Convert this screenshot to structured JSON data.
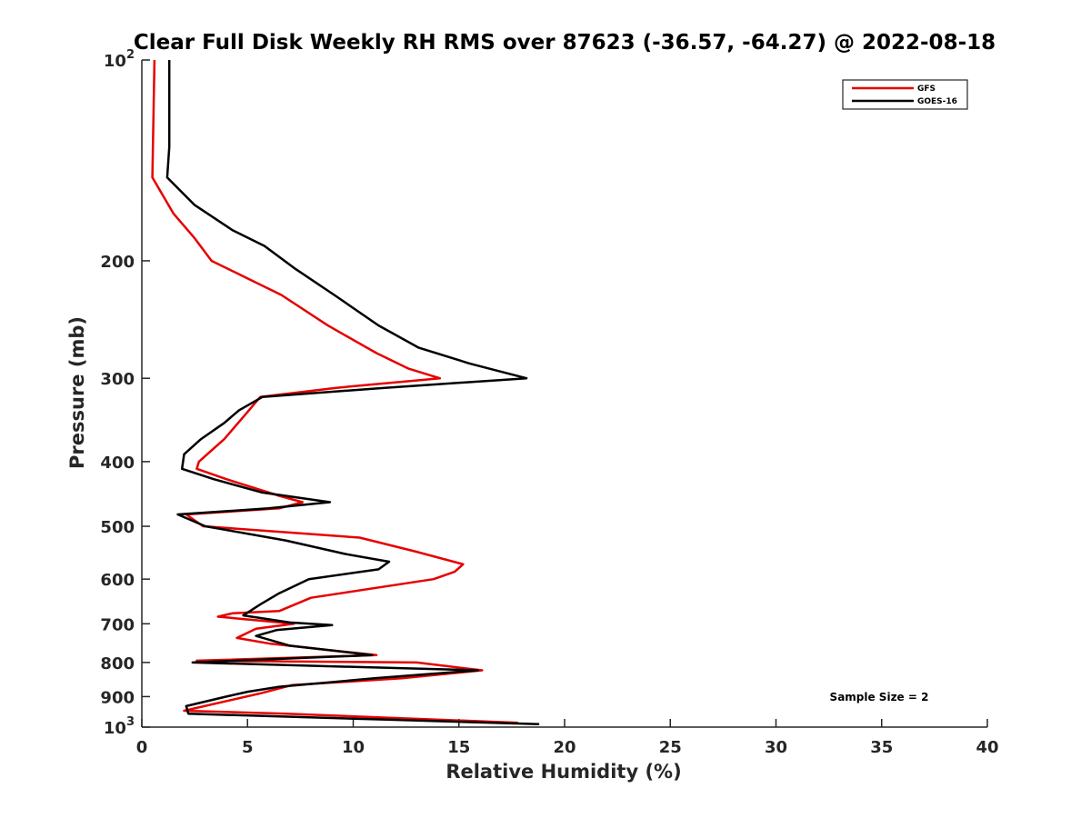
{
  "chart_data": {
    "type": "line",
    "title": "Clear Full Disk Weekly RH RMS over 87623 (-36.57, -64.27) @ 2022-08-18",
    "xlabel": "Relative Humidity (%)",
    "ylabel": "Pressure (mb)",
    "xlim": [
      0,
      40
    ],
    "ylim": [
      100,
      1000
    ],
    "y_scale": "log",
    "y_reversed": true,
    "grid": false,
    "legend_position": "top-right",
    "x_ticks": [
      {
        "value": 0,
        "label": "0"
      },
      {
        "value": 5,
        "label": "5"
      },
      {
        "value": 10,
        "label": "10"
      },
      {
        "value": 15,
        "label": "15"
      },
      {
        "value": 20,
        "label": "20"
      },
      {
        "value": 25,
        "label": "25"
      },
      {
        "value": 30,
        "label": "30"
      },
      {
        "value": 35,
        "label": "35"
      },
      {
        "value": 40,
        "label": "40"
      }
    ],
    "y_ticks": [
      {
        "value": 100,
        "label": "10",
        "sup": "2"
      },
      {
        "value": 200,
        "label": "200",
        "sup": ""
      },
      {
        "value": 300,
        "label": "300",
        "sup": ""
      },
      {
        "value": 400,
        "label": "400",
        "sup": ""
      },
      {
        "value": 500,
        "label": "500",
        "sup": ""
      },
      {
        "value": 600,
        "label": "600",
        "sup": ""
      },
      {
        "value": 700,
        "label": "700",
        "sup": ""
      },
      {
        "value": 800,
        "label": "800",
        "sup": ""
      },
      {
        "value": 900,
        "label": "900",
        "sup": ""
      },
      {
        "value": 1000,
        "label": "10",
        "sup": "3"
      }
    ],
    "series": [
      {
        "name": "GFS",
        "color": "#e60000",
        "points": [
          [
            0.6,
            100
          ],
          [
            0.5,
            150
          ],
          [
            1.5,
            170
          ],
          [
            2.5,
            185
          ],
          [
            3.3,
            200
          ],
          [
            6.6,
            225
          ],
          [
            8.8,
            250
          ],
          [
            11.1,
            275
          ],
          [
            12.6,
            290
          ],
          [
            14.1,
            300
          ],
          [
            9.2,
            310
          ],
          [
            5.6,
            320
          ],
          [
            4.9,
            340
          ],
          [
            3.9,
            370
          ],
          [
            2.7,
            400
          ],
          [
            2.6,
            410
          ],
          [
            4.0,
            425
          ],
          [
            6.5,
            450
          ],
          [
            7.6,
            460
          ],
          [
            6.5,
            470
          ],
          [
            2.1,
            480
          ],
          [
            2.9,
            500
          ],
          [
            10.3,
            520
          ],
          [
            12.9,
            545
          ],
          [
            15.2,
            570
          ],
          [
            14.8,
            585
          ],
          [
            13.8,
            600
          ],
          [
            8.0,
            640
          ],
          [
            6.5,
            670
          ],
          [
            4.3,
            675
          ],
          [
            3.6,
            683
          ],
          [
            7.2,
            700
          ],
          [
            5.4,
            712
          ],
          [
            4.5,
            735
          ],
          [
            6.1,
            750
          ],
          [
            11.1,
            780
          ],
          [
            2.6,
            795
          ],
          [
            13.0,
            800
          ],
          [
            16.1,
            822
          ],
          [
            12.3,
            845
          ],
          [
            7.1,
            865
          ],
          [
            5.6,
            890
          ],
          [
            2.0,
            945
          ],
          [
            6.8,
            955
          ],
          [
            17.8,
            985
          ]
        ]
      },
      {
        "name": "GOES-16",
        "color": "#000000",
        "points": [
          [
            1.3,
            100
          ],
          [
            1.3,
            135
          ],
          [
            1.2,
            150
          ],
          [
            2.5,
            165
          ],
          [
            4.3,
            180
          ],
          [
            5.8,
            190
          ],
          [
            7.2,
            205
          ],
          [
            9.1,
            225
          ],
          [
            11.2,
            250
          ],
          [
            13.1,
            270
          ],
          [
            15.5,
            285
          ],
          [
            18.2,
            300
          ],
          [
            11.5,
            310
          ],
          [
            5.7,
            320
          ],
          [
            4.6,
            335
          ],
          [
            3.9,
            350
          ],
          [
            2.8,
            370
          ],
          [
            2.0,
            390
          ],
          [
            1.9,
            410
          ],
          [
            3.4,
            425
          ],
          [
            5.7,
            445
          ],
          [
            8.9,
            460
          ],
          [
            6.0,
            470
          ],
          [
            1.7,
            480
          ],
          [
            3.0,
            500
          ],
          [
            6.8,
            525
          ],
          [
            9.6,
            550
          ],
          [
            11.7,
            565
          ],
          [
            11.2,
            580
          ],
          [
            7.9,
            600
          ],
          [
            6.5,
            630
          ],
          [
            5.6,
            655
          ],
          [
            4.8,
            680
          ],
          [
            7.0,
            697
          ],
          [
            9.0,
            703
          ],
          [
            6.4,
            715
          ],
          [
            5.4,
            730
          ],
          [
            7.0,
            755
          ],
          [
            10.9,
            780
          ],
          [
            2.4,
            800
          ],
          [
            15.9,
            822
          ],
          [
            11.0,
            845
          ],
          [
            6.5,
            870
          ],
          [
            5.0,
            885
          ],
          [
            4.0,
            900
          ],
          [
            2.1,
            930
          ],
          [
            2.2,
            955
          ],
          [
            11.8,
            975
          ],
          [
            18.8,
            990
          ]
        ]
      }
    ],
    "annotations": [
      {
        "text": "Sample Size = 2",
        "x": 33.3,
        "y": 900
      }
    ]
  }
}
